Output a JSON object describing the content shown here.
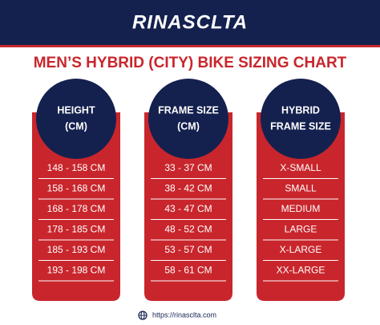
{
  "brand": "RINASCLTA",
  "title": "MEN’S HYBRID (CITY) BIKE SIZING CHART",
  "columns": [
    {
      "header": [
        "HEIGHT",
        "(CM)"
      ],
      "rows": [
        "148 - 158 CM",
        "158 - 168 CM",
        "168 - 178 CM",
        "178 - 185 CM",
        "185 - 193 CM",
        "193 - 198 CM"
      ]
    },
    {
      "header": [
        "FRAME SIZE",
        "(CM)"
      ],
      "rows": [
        "33 - 37 CM",
        "38 - 42 CM",
        "43 - 47 CM",
        "48 - 52 CM",
        "53 - 57 CM",
        "58 - 61 CM"
      ]
    },
    {
      "header": [
        "HYBRID",
        "FRAME SIZE"
      ],
      "rows": [
        "X-SMALL",
        "SMALL",
        "MEDIUM",
        "LARGE",
        "X-LARGE",
        "XX-LARGE"
      ]
    }
  ],
  "footer": "https://rinasclta.com"
}
